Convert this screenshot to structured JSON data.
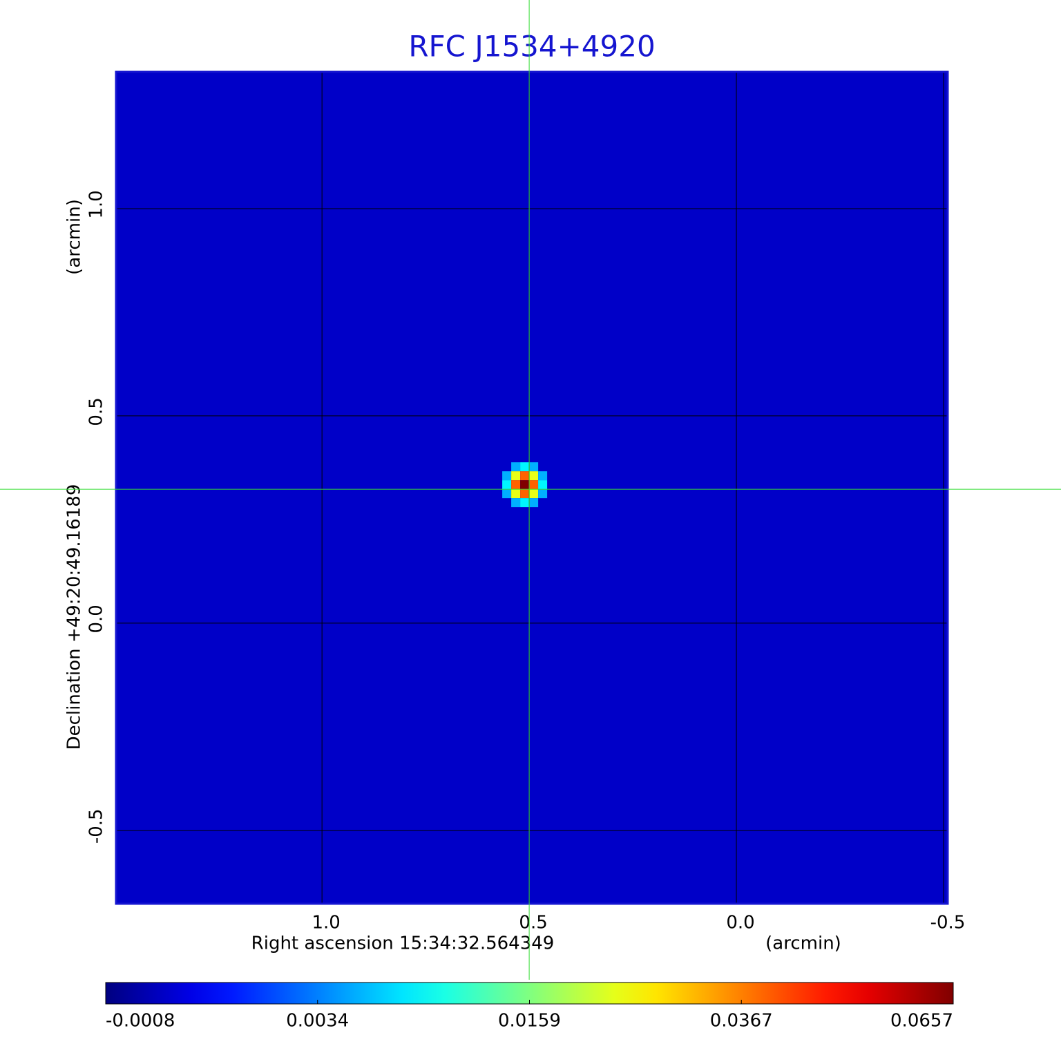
{
  "chart_data": {
    "type": "image",
    "title": "RFC J1534+4920",
    "x_label": "Right ascension  15:34:32.564349",
    "x_unit": "(arcmin)",
    "y_label": "Declination  +49:20:49.16189",
    "y_unit": "(arcmin)",
    "xlim": [
      1.497,
      -0.51
    ],
    "ylim": [
      -0.677,
      1.33
    ],
    "xticks": [
      {
        "value": 1,
        "label": "1.0"
      },
      0.5,
      {
        "value": 0,
        "label": "0.0"
      },
      -0.5
    ],
    "yticks": [
      -0.5,
      {
        "value": 0,
        "label": "0.0"
      },
      0.5,
      {
        "value": 1,
        "label": "1.0"
      }
    ],
    "grid": true,
    "source": {
      "x": 0.5,
      "y": 0.323,
      "value": 0.0657
    },
    "crosshair": {
      "x": 0.5,
      "y": 0.323,
      "color": "#33dd33"
    },
    "background_value": 0.0004,
    "colorbar_ticks": [
      -0.0008,
      0.0034,
      0.0159,
      0.0367,
      0.0657
    ]
  }
}
